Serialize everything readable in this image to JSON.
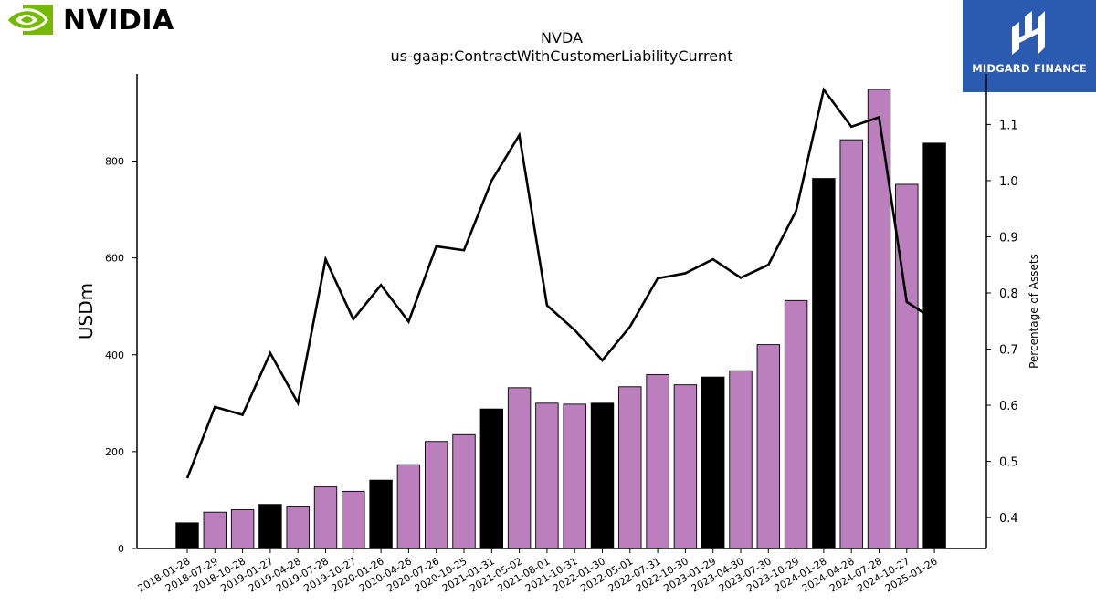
{
  "header": {
    "brand_left": "NVIDIA",
    "brand_right": "MIDGARD FINANCE",
    "brand_left_color": "#76b900",
    "brand_right_color": "#2b5bb0"
  },
  "chart_data": {
    "type": "bar",
    "title": "NVDA",
    "subtitle": "us-gaap:ContractWithCustomerLiabilityCurrent",
    "ylabel": "USDm",
    "y2label": "Percentage of Assets",
    "ylim": [
      0,
      980
    ],
    "y2lim": [
      0.345,
      1.19
    ],
    "yticks": [
      0,
      200,
      400,
      600,
      800
    ],
    "y2ticks": [
      0.4,
      0.5,
      0.6,
      0.7,
      0.8,
      0.9,
      1.0,
      1.1
    ],
    "categories": [
      "2018-01-28",
      "2018-07-29",
      "2018-10-28",
      "2019-01-27",
      "2019-04-28",
      "2019-07-28",
      "2019-10-27",
      "2020-01-26",
      "2020-04-26",
      "2020-07-26",
      "2020-10-25",
      "2021-01-31",
      "2021-05-02",
      "2021-08-01",
      "2021-10-31",
      "2022-01-30",
      "2022-05-01",
      "2022-07-31",
      "2022-10-30",
      "2023-01-29",
      "2023-04-30",
      "2023-07-30",
      "2023-10-29",
      "2024-01-28",
      "2024-04-28",
      "2024-07-28",
      "2024-10-27",
      "2025-01-26"
    ],
    "series": [
      {
        "kind": "bar",
        "values": [
          53,
          75,
          80,
          91,
          86,
          127,
          118,
          141,
          173,
          221,
          235,
          288,
          332,
          300,
          298,
          300,
          334,
          359,
          338,
          354,
          367,
          421,
          512,
          764,
          844,
          948,
          752,
          837
        ],
        "colors": [
          "#000000",
          "#bb7fbd",
          "#bb7fbd",
          "#000000",
          "#bb7fbd",
          "#bb7fbd",
          "#bb7fbd",
          "#000000",
          "#bb7fbd",
          "#bb7fbd",
          "#bb7fbd",
          "#000000",
          "#bb7fbd",
          "#bb7fbd",
          "#bb7fbd",
          "#000000",
          "#bb7fbd",
          "#bb7fbd",
          "#bb7fbd",
          "#000000",
          "#bb7fbd",
          "#bb7fbd",
          "#bb7fbd",
          "#000000",
          "#bb7fbd",
          "#bb7fbd",
          "#bb7fbd",
          "#000000"
        ]
      },
      {
        "kind": "line",
        "axis": "right",
        "color": "#000000",
        "values": [
          0.47,
          0.597,
          0.583,
          0.693,
          0.604,
          0.86,
          0.753,
          0.814,
          0.749,
          0.883,
          0.876,
          1.0,
          1.081,
          0.778,
          0.734,
          0.68,
          0.74,
          0.826,
          0.835,
          0.86,
          0.827,
          0.85,
          0.946,
          1.162,
          1.096,
          1.113,
          0.784,
          0.752
        ]
      }
    ],
    "grid": false,
    "legend": "none"
  }
}
